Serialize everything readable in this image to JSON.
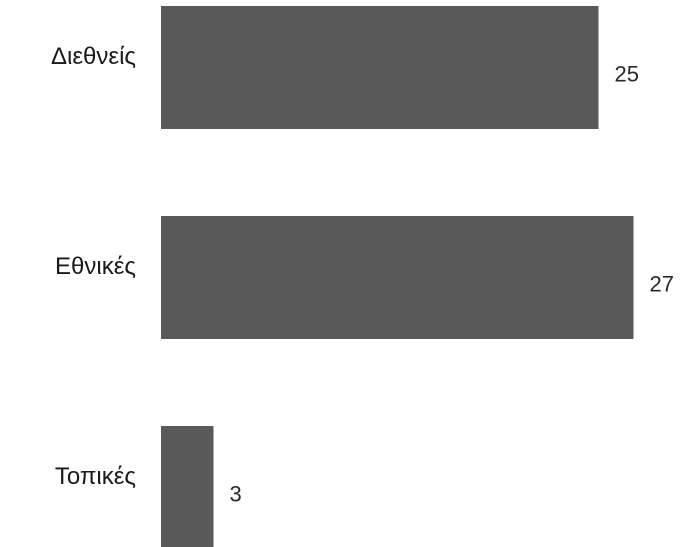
{
  "chart_data": {
    "type": "bar",
    "orientation": "horizontal",
    "categories": [
      "Διεθνείς",
      "Εθνικές",
      "Τοπικές"
    ],
    "values": [
      25,
      27,
      3
    ],
    "title": "",
    "xlabel": "",
    "ylabel": "",
    "grid": false,
    "legend": "none",
    "bar_color": "#595959"
  }
}
